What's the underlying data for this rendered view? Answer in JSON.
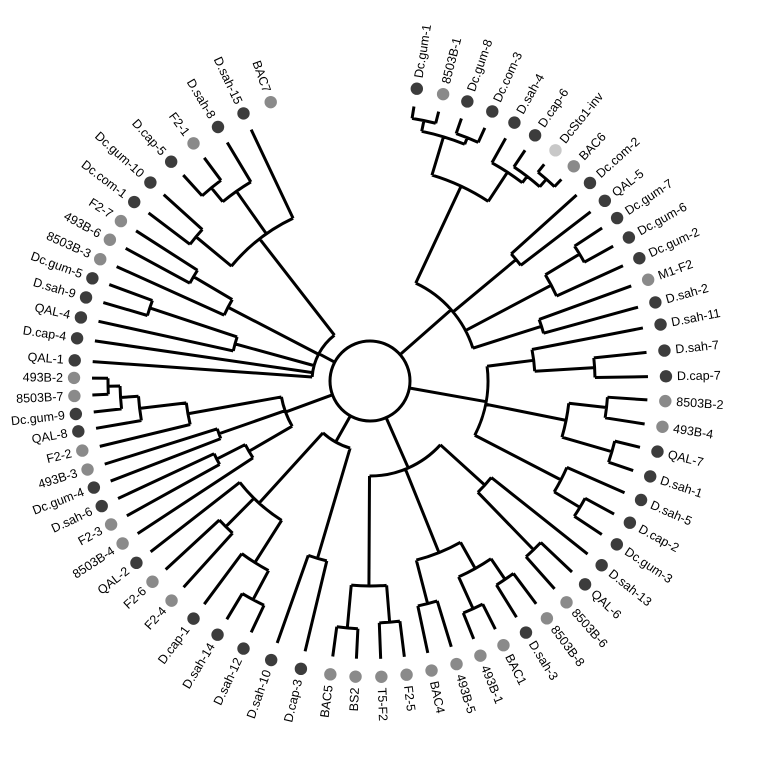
{
  "tree": {
    "colors": {
      "dark": "#3c3c3c",
      "mid": "#8a8a8a",
      "light": "#c8c8c8",
      "line": "#000000"
    },
    "leaves": [
      {
        "label": "Dc.gum-1",
        "angle": 9.1,
        "shade": "dark"
      },
      {
        "label": "8503B-1",
        "angle": 14.3,
        "shade": "mid"
      },
      {
        "label": "Dc.gum-8",
        "angle": 19.2,
        "shade": "dark"
      },
      {
        "label": "Dc.com-3",
        "angle": 24.4,
        "shade": "dark"
      },
      {
        "label": "D.sah-4",
        "angle": 29.2,
        "shade": "dark"
      },
      {
        "label": "D.cap-6",
        "angle": 33.9,
        "shade": "dark"
      },
      {
        "label": "DcSto1-inv",
        "angle": 38.8,
        "shade": "light"
      },
      {
        "label": "BAC6",
        "angle": 43.5,
        "shade": "mid"
      },
      {
        "label": "Dc.com-2",
        "angle": 48.0,
        "shade": "dark"
      },
      {
        "label": "QAL-5",
        "angle": 52.5,
        "shade": "dark"
      },
      {
        "label": "Dc.gum-7",
        "angle": 56.6,
        "shade": "dark"
      },
      {
        "label": "Dc.gum-6",
        "angle": 61.0,
        "shade": "dark"
      },
      {
        "label": "Dc.gum-2",
        "angle": 65.5,
        "shade": "dark"
      },
      {
        "label": "M1-F2",
        "angle": 70.0,
        "shade": "mid"
      },
      {
        "label": "D.sah-2",
        "angle": 74.6,
        "shade": "dark"
      },
      {
        "label": "D.sah-11",
        "angle": 79.0,
        "shade": "dark"
      },
      {
        "label": "D.sah-7",
        "angle": 84.1,
        "shade": "dark"
      },
      {
        "label": "D.cap-7",
        "angle": 89.1,
        "shade": "dark"
      },
      {
        "label": "8503B-2",
        "angle": 93.9,
        "shade": "mid"
      },
      {
        "label": "493B-4",
        "angle": 98.9,
        "shade": "mid"
      },
      {
        "label": "QAL-7",
        "angle": 103.8,
        "shade": "dark"
      },
      {
        "label": "D.sah-1",
        "angle": 108.8,
        "shade": "dark"
      },
      {
        "label": "D.sah-5",
        "angle": 113.7,
        "shade": "dark"
      },
      {
        "label": "D.cap-2",
        "angle": 118.6,
        "shade": "dark"
      },
      {
        "label": "Dc.gum-3",
        "angle": 123.5,
        "shade": "dark"
      },
      {
        "label": "D.sah-13",
        "angle": 128.5,
        "shade": "dark"
      },
      {
        "label": "QAL-6",
        "angle": 133.4,
        "shade": "dark"
      },
      {
        "label": "8503B-6",
        "angle": 138.4,
        "shade": "mid"
      },
      {
        "label": "8503B-8",
        "angle": 143.3,
        "shade": "mid"
      },
      {
        "label": "D.sah-3",
        "angle": 148.2,
        "shade": "dark"
      },
      {
        "label": "BAC1",
        "angle": 153.2,
        "shade": "mid"
      },
      {
        "label": "493B-1",
        "angle": 158.1,
        "shade": "mid"
      },
      {
        "label": "493B-5",
        "angle": 163.0,
        "shade": "mid"
      },
      {
        "label": "BAC4",
        "angle": 168.0,
        "shade": "mid"
      },
      {
        "label": "F2-5",
        "angle": 172.9,
        "shade": "mid"
      },
      {
        "label": "T5-F2",
        "angle": 177.8,
        "shade": "mid"
      },
      {
        "label": "BS2",
        "angle": 182.8,
        "shade": "mid"
      },
      {
        "label": "BAC5",
        "angle": 187.7,
        "shade": "mid"
      },
      {
        "label": "D.cap-3",
        "angle": 193.5,
        "shade": "dark"
      },
      {
        "label": "D.sah-10",
        "angle": 199.5,
        "shade": "dark"
      },
      {
        "label": "D.sah-12",
        "angle": 205.3,
        "shade": "dark"
      },
      {
        "label": "D.sah-14",
        "angle": 211.0,
        "shade": "dark"
      },
      {
        "label": "D.cap-1",
        "angle": 216.6,
        "shade": "dark"
      },
      {
        "label": "F2-4",
        "angle": 222.1,
        "shade": "mid"
      },
      {
        "label": "F2-6",
        "angle": 227.3,
        "shade": "mid"
      },
      {
        "label": "QAL-2",
        "angle": 232.1,
        "shade": "dark"
      },
      {
        "label": "8503B-4",
        "angle": 236.7,
        "shade": "mid"
      },
      {
        "label": "F2-3",
        "angle": 241.0,
        "shade": "mid"
      },
      {
        "label": "D.sah-6",
        "angle": 245.0,
        "shade": "dark"
      },
      {
        "label": "Dc.gum-4",
        "angle": 248.9,
        "shade": "dark"
      },
      {
        "label": "493B-3",
        "angle": 252.6,
        "shade": "mid"
      },
      {
        "label": "F2-2",
        "angle": 256.4,
        "shade": "mid"
      },
      {
        "label": "QAL-8",
        "angle": 260.2,
        "shade": "dark"
      },
      {
        "label": "Dc.gum-9",
        "angle": 263.6,
        "shade": "dark"
      },
      {
        "label": "8503B-7",
        "angle": 267.1,
        "shade": "mid"
      },
      {
        "label": "493B-2",
        "angle": 270.6,
        "shade": "mid"
      },
      {
        "label": "QAL-1",
        "angle": 274.0,
        "shade": "dark"
      },
      {
        "label": "D.cap-4",
        "angle": 278.3,
        "shade": "dark"
      },
      {
        "label": "QAL-4",
        "angle": 282.4,
        "shade": "dark"
      },
      {
        "label": "D.sah-9",
        "angle": 286.4,
        "shade": "dark"
      },
      {
        "label": "Dc.gum-5",
        "angle": 290.3,
        "shade": "dark"
      },
      {
        "label": "8503B-3",
        "angle": 294.3,
        "shade": "mid"
      },
      {
        "label": "493B-6",
        "angle": 298.5,
        "shade": "mid"
      },
      {
        "label": "F2-7",
        "angle": 302.7,
        "shade": "mid"
      },
      {
        "label": "Dc.com-1",
        "angle": 307.2,
        "shade": "dark"
      },
      {
        "label": "Dc.gum-10",
        "angle": 312.1,
        "shade": "dark"
      },
      {
        "label": "D.cap-5",
        "angle": 317.8,
        "shade": "dark"
      },
      {
        "label": "F2-1",
        "angle": 323.4,
        "shade": "mid"
      },
      {
        "label": "D.sah-8",
        "angle": 329.1,
        "shade": "dark"
      },
      {
        "label": "D.sah-15",
        "angle": 334.7,
        "shade": "dark"
      },
      {
        "label": "BAC7",
        "angle": 340.4,
        "shade": "mid"
      }
    ]
  }
}
